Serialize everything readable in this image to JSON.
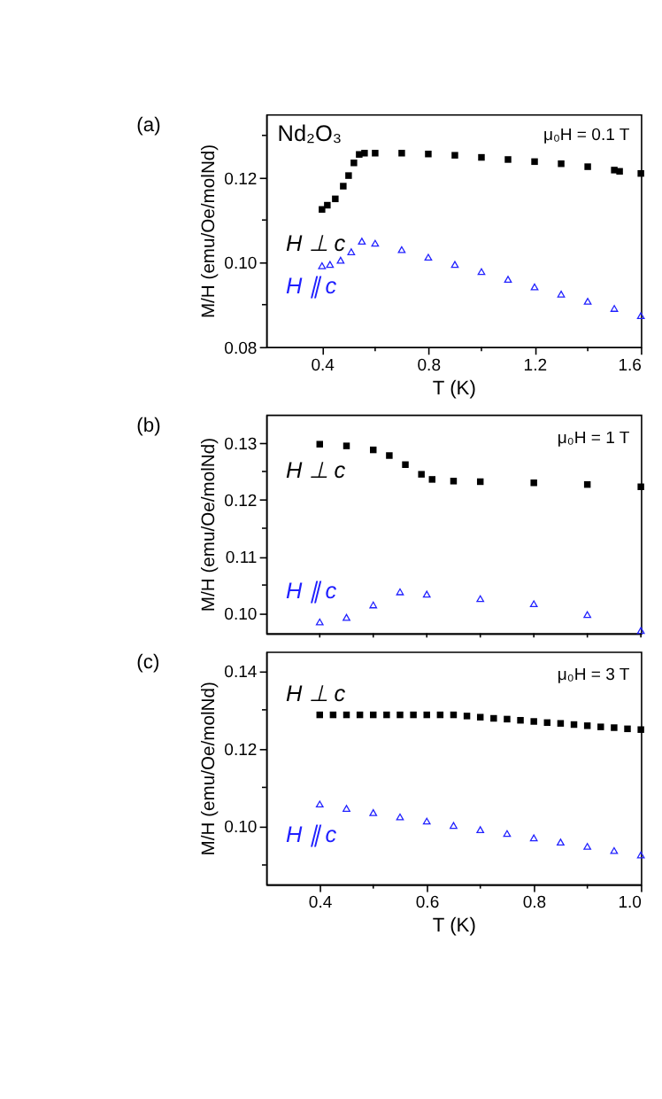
{
  "chart_data": [
    {
      "type": "scatter",
      "title": "(a)",
      "xlabel": "T (K)",
      "ylabel": "M/H (emu/Oe/molNd)",
      "annotations": [
        "Nd₂O₃",
        "μ₀H = 0.1 T"
      ],
      "xlim": [
        0.19,
        1.6
      ],
      "ylim": [
        0.08,
        0.135
      ],
      "xticks": [
        {
          "value": 0.4,
          "label": "0.4"
        },
        {
          "value": 0.6,
          "label": null
        },
        {
          "value": 0.8,
          "label": "0.8"
        },
        {
          "value": 1.0,
          "label": null
        },
        {
          "value": 1.2,
          "label": "1.2"
        },
        {
          "value": 1.4,
          "label": null
        },
        {
          "value": 1.6,
          "label": "1.6"
        }
      ],
      "yticks": [
        {
          "value": 0.08,
          "label": "0.08"
        },
        {
          "value": 0.09,
          "label": null
        },
        {
          "value": 0.1,
          "label": "0.10"
        },
        {
          "value": 0.11,
          "label": null
        },
        {
          "value": 0.12,
          "label": "0.12"
        },
        {
          "value": 0.13,
          "label": null
        }
      ],
      "grid": false,
      "legend": false,
      "series": [
        {
          "name": "H ⊥ c",
          "color": "#000000",
          "marker": "square",
          "x": [
            0.4,
            0.42,
            0.45,
            0.48,
            0.5,
            0.52,
            0.54,
            0.56,
            0.6,
            0.7,
            0.8,
            0.9,
            1.0,
            1.1,
            1.2,
            1.3,
            1.4,
            1.5,
            1.52,
            1.6
          ],
          "values": [
            0.1125,
            0.1135,
            0.115,
            0.118,
            0.1205,
            0.1235,
            0.1255,
            0.1258,
            0.1258,
            0.1258,
            0.1256,
            0.1253,
            0.1248,
            0.1243,
            0.1238,
            0.1233,
            0.1226,
            0.1218,
            0.1215,
            0.121
          ]
        },
        {
          "name": "H ∥ c",
          "color": "#2020ff",
          "marker": "triangle",
          "x": [
            0.4,
            0.43,
            0.47,
            0.51,
            0.55,
            0.6,
            0.7,
            0.8,
            0.9,
            1.0,
            1.1,
            1.2,
            1.3,
            1.4,
            1.5,
            1.6
          ],
          "values": [
            0.0992,
            0.0995,
            0.1005,
            0.1025,
            0.105,
            0.1045,
            0.103,
            0.1012,
            0.0995,
            0.0978,
            0.096,
            0.0942,
            0.0925,
            0.0908,
            0.0891,
            0.0874
          ]
        }
      ]
    },
    {
      "type": "scatter",
      "title": "(b)",
      "ylabel": "M/H (emu/Oe/molNd)",
      "annotations": [
        "μ₀H = 1 T"
      ],
      "xlim": [
        0.3,
        1.0
      ],
      "ylim": [
        0.0965,
        0.135
      ],
      "tick_labels": "y",
      "xticks": [
        {
          "value": 0.4,
          "label": null
        },
        {
          "value": 0.5,
          "label": null
        },
        {
          "value": 0.6,
          "label": null
        },
        {
          "value": 0.7,
          "label": null
        },
        {
          "value": 0.8,
          "label": null
        },
        {
          "value": 0.9,
          "label": null
        },
        {
          "value": 1.0,
          "label": null
        }
      ],
      "yticks": [
        {
          "value": 0.1,
          "label": "0.10"
        },
        {
          "value": 0.105,
          "label": null
        },
        {
          "value": 0.11,
          "label": "0.11"
        },
        {
          "value": 0.115,
          "label": null
        },
        {
          "value": 0.12,
          "label": "0.12"
        },
        {
          "value": 0.125,
          "label": null
        },
        {
          "value": 0.13,
          "label": "0.13"
        }
      ],
      "grid": false,
      "legend": false,
      "series": [
        {
          "name": "H ⊥ c",
          "color": "#000000",
          "marker": "square",
          "x": [
            0.4,
            0.45,
            0.5,
            0.53,
            0.56,
            0.59,
            0.61,
            0.65,
            0.7,
            0.8,
            0.9,
            1.0
          ],
          "values": [
            0.1298,
            0.1295,
            0.1288,
            0.1278,
            0.1262,
            0.1245,
            0.1236,
            0.1233,
            0.1232,
            0.123,
            0.1227,
            0.1223
          ]
        },
        {
          "name": "H ∥ c",
          "color": "#2020ff",
          "marker": "triangle",
          "x": [
            0.4,
            0.45,
            0.5,
            0.55,
            0.6,
            0.7,
            0.8,
            0.9,
            1.0
          ],
          "values": [
            0.0985,
            0.0993,
            0.1015,
            0.1038,
            0.1034,
            0.1026,
            0.1017,
            0.0998,
            0.097
          ]
        }
      ]
    },
    {
      "type": "scatter",
      "title": "(c)",
      "xlabel": "T (K)",
      "ylabel": "M/H (emu/Oe/molNd)",
      "annotations": [
        "μ₀H = 3 T"
      ],
      "xlim": [
        0.3,
        1.0
      ],
      "ylim": [
        0.085,
        0.145
      ],
      "xticks": [
        {
          "value": 0.4,
          "label": "0.4"
        },
        {
          "value": 0.5,
          "label": null
        },
        {
          "value": 0.6,
          "label": "0.6"
        },
        {
          "value": 0.7,
          "label": null
        },
        {
          "value": 0.8,
          "label": "0.8"
        },
        {
          "value": 0.9,
          "label": null
        },
        {
          "value": 1.0,
          "label": "1.0"
        }
      ],
      "yticks": [
        {
          "value": 0.09,
          "label": null
        },
        {
          "value": 0.1,
          "label": "0.10"
        },
        {
          "value": 0.11,
          "label": null
        },
        {
          "value": 0.12,
          "label": "0.12"
        },
        {
          "value": 0.13,
          "label": null
        },
        {
          "value": 0.14,
          "label": "0.14"
        }
      ],
      "grid": false,
      "legend": false,
      "series": [
        {
          "name": "H ⊥ c",
          "color": "#000000",
          "marker": "square",
          "x": [
            0.4,
            0.425,
            0.45,
            0.475,
            0.5,
            0.525,
            0.55,
            0.575,
            0.6,
            0.625,
            0.65,
            0.675,
            0.7,
            0.725,
            0.75,
            0.775,
            0.8,
            0.825,
            0.85,
            0.875,
            0.9,
            0.925,
            0.95,
            0.975,
            1.0
          ],
          "values": [
            0.1287,
            0.1287,
            0.1287,
            0.1287,
            0.1287,
            0.1287,
            0.1287,
            0.1287,
            0.1287,
            0.1287,
            0.1287,
            0.1284,
            0.1281,
            0.1278,
            0.1276,
            0.1273,
            0.127,
            0.1267,
            0.1265,
            0.1262,
            0.1259,
            0.1256,
            0.1254,
            0.1251,
            0.1249
          ]
        },
        {
          "name": "H ∥ c",
          "color": "#2020ff",
          "marker": "triangle",
          "x": [
            0.4,
            0.45,
            0.5,
            0.55,
            0.6,
            0.65,
            0.7,
            0.75,
            0.8,
            0.85,
            0.9,
            0.95,
            1.0
          ],
          "values": [
            0.1057,
            0.1046,
            0.1035,
            0.1024,
            0.1013,
            0.1002,
            0.0991,
            0.0981,
            0.097,
            0.0959,
            0.0948,
            0.0937,
            0.0926
          ]
        }
      ]
    }
  ]
}
